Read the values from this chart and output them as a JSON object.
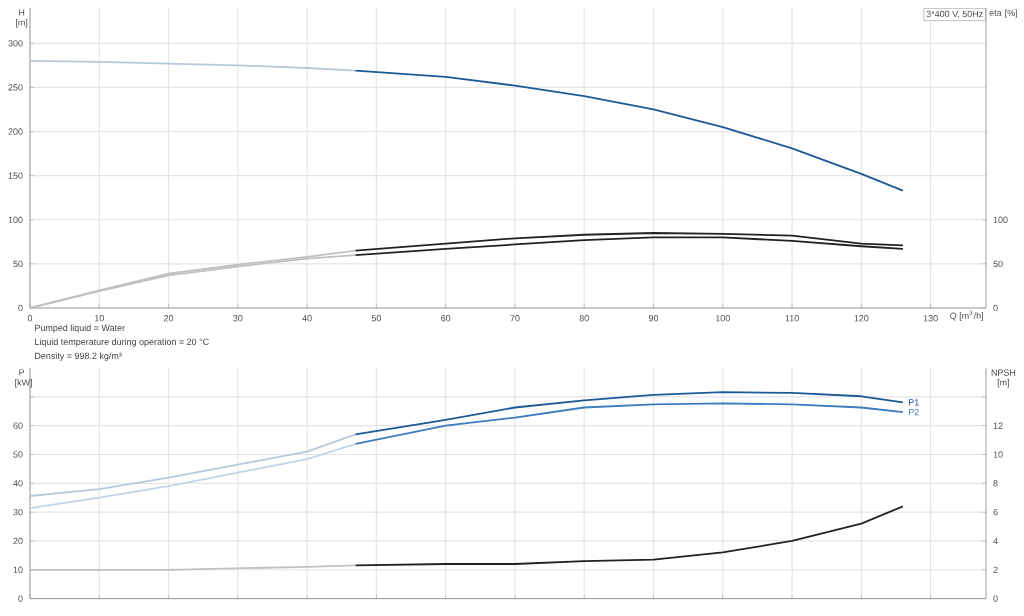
{
  "chart_data": [
    {
      "type": "line",
      "title": "3*400 V, 50Hz",
      "xlabel": "Q [m$^{3}$/h]",
      "ylabel": "H [m]",
      "y2label": "eta [%]",
      "annotations": [
        "Pumped liquid = Water",
        "Liquid temperature during operation = 20 °C",
        "Density = 998.2 kg/m³"
      ],
      "xlim": [
        0,
        138
      ],
      "xticks": [
        0,
        10,
        20,
        30,
        40,
        50,
        60,
        70,
        80,
        90,
        100,
        110,
        120,
        130
      ],
      "ylim": [
        0,
        340
      ],
      "yticks": [
        0,
        50,
        100,
        150,
        200,
        250,
        300
      ],
      "y2lim": [
        0,
        340
      ],
      "y2ticks": [
        0,
        50,
        100
      ],
      "grid": true,
      "marker": "none",
      "line_style": "solid",
      "series": [
        {
          "color": "#b8c8dc",
          "x": [
            0,
            10,
            20,
            30,
            40,
            47
          ],
          "values": [
            280,
            279,
            277,
            275,
            272,
            269
          ]
        },
        {
          "color": "#1c5a96",
          "x": [
            47,
            60,
            70,
            80,
            90,
            100,
            110,
            120,
            126
          ],
          "values": [
            269,
            262,
            252,
            240,
            225,
            205,
            181,
            152,
            133
          ]
        },
        {
          "color": "#c0c0c0",
          "axis": "y2",
          "x": [
            0,
            10,
            20,
            30,
            40,
            47
          ],
          "values": [
            0,
            20,
            39,
            49,
            58,
            65
          ]
        },
        {
          "color": "#222222",
          "axis": "y2",
          "x": [
            47,
            60,
            70,
            80,
            90,
            100,
            110,
            120,
            126
          ],
          "values": [
            65,
            73,
            79,
            83,
            85,
            84,
            82,
            73,
            71
          ]
        },
        {
          "color": "#c0c0c0",
          "axis": "y2",
          "x": [
            0,
            10,
            20,
            30,
            40,
            47
          ],
          "values": [
            0,
            19,
            37,
            47,
            56,
            60
          ]
        },
        {
          "color": "#222222",
          "axis": "y2",
          "x": [
            47,
            60,
            70,
            80,
            90,
            100,
            110,
            120,
            126
          ],
          "values": [
            60,
            67,
            72,
            77,
            80,
            80,
            76,
            70,
            67
          ]
        }
      ]
    },
    {
      "type": "line",
      "ylabel": "P [kW]",
      "y2label": "NPSH [m]",
      "tick_labels": "y",
      "xlim": [
        0,
        138
      ],
      "xticks": [
        0,
        10,
        20,
        30,
        40,
        50,
        60,
        70,
        80,
        90,
        100,
        110,
        120,
        130
      ],
      "ylim": [
        0,
        80
      ],
      "yticks": [
        0,
        10,
        20,
        30,
        40,
        50,
        60,
        {
          "value": 70,
          "label": null
        }
      ],
      "y2lim": [
        0,
        16
      ],
      "y2ticks": [
        0,
        2,
        4,
        6,
        8,
        10,
        12,
        {
          "value": 14,
          "label": null
        }
      ],
      "grid": true,
      "marker": "none",
      "line_style": "solid",
      "series": [
        {
          "color": "#b8c8dc",
          "x": [
            0,
            10,
            20,
            30,
            40,
            47
          ],
          "values": [
            35.6,
            38,
            42,
            46.5,
            51,
            57
          ]
        },
        {
          "name": "P1",
          "color": "#1c5a96",
          "x": [
            47,
            60,
            70,
            80,
            90,
            100,
            110,
            120,
            126
          ],
          "values": [
            57,
            62,
            66.3,
            68.8,
            70.7,
            71.6,
            71.4,
            70.2,
            68.1
          ]
        },
        {
          "color": "#c4d4e8",
          "x": [
            0,
            10,
            20,
            30,
            40,
            47
          ],
          "values": [
            31.4,
            35,
            39,
            43.7,
            48.4,
            53.7
          ]
        },
        {
          "name": "P2",
          "color": "#3c7cc0",
          "x": [
            47,
            60,
            70,
            80,
            90,
            100,
            110,
            120,
            126
          ],
          "values": [
            53.7,
            60,
            62.8,
            66.3,
            67.4,
            67.7,
            67.4,
            66.3,
            64.7
          ]
        },
        {
          "color": "#c0c0c0",
          "axis": "y2",
          "x": [
            0,
            20,
            40,
            47
          ],
          "values": [
            2,
            2,
            2.2,
            2.3
          ]
        },
        {
          "color": "#222222",
          "axis": "y2",
          "x": [
            47,
            60,
            70,
            80,
            90,
            100,
            110,
            120,
            126
          ],
          "values": [
            2.3,
            2.4,
            2.4,
            2.6,
            2.7,
            3.2,
            4.0,
            5.2,
            6.4
          ]
        }
      ]
    }
  ]
}
